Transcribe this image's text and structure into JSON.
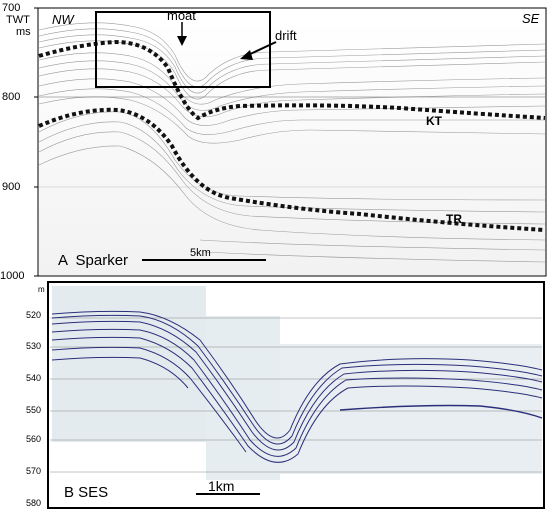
{
  "panel_a": {
    "y_axis_title_line1": "TWT",
    "y_axis_title_line2": "ms",
    "y_ticks": [
      "700",
      "800",
      "900",
      "1000"
    ],
    "direction_left": "NW",
    "direction_right": "SE",
    "annotation_moat": "moat",
    "annotation_drift": "drift",
    "horizon_kt": "KT",
    "horizon_tr": "TR",
    "panel_label": "A  Sparker",
    "scale_label": "5km"
  },
  "panel_b": {
    "y_axis_unit": "m",
    "y_ticks": [
      "520",
      "530",
      "540",
      "550",
      "560",
      "570",
      "580"
    ],
    "panel_label": "B SES",
    "scale_label": "1km"
  }
}
